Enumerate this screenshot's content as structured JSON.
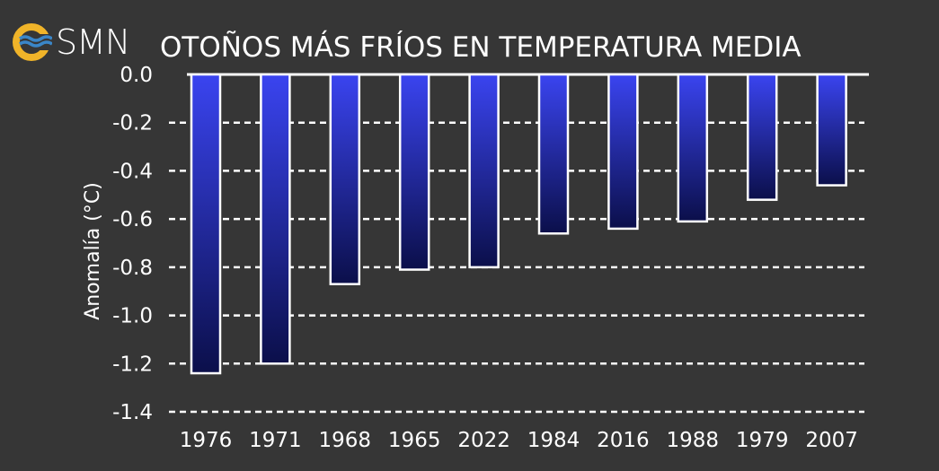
{
  "header": {
    "logo_text": "SMN",
    "logo_icon": "smn-wave-icon",
    "colors": {
      "logo_ring": "#f0b429",
      "logo_waves": "#3a86c8"
    }
  },
  "chart_data": {
    "type": "bar",
    "title": "OTOÑOS MÁS FRÍOS EN TEMPERATURA MEDIA",
    "xlabel": "",
    "ylabel": "Anomalía (°C)",
    "categories": [
      "1976",
      "1971",
      "1968",
      "1965",
      "2022",
      "1984",
      "2016",
      "1988",
      "1979",
      "2007"
    ],
    "values": [
      -1.24,
      -1.2,
      -0.87,
      -0.81,
      -0.8,
      -0.66,
      -0.64,
      -0.61,
      -0.52,
      -0.46
    ],
    "ylim": [
      -1.4,
      0.0
    ],
    "yticks": [
      "0.0",
      "-0.2",
      "-0.4",
      "-0.6",
      "-0.8",
      "-1.0",
      "-1.2",
      "-1.4"
    ],
    "grid": "horizontal dashed",
    "colors": {
      "background": "#363636",
      "bar_top": "#3a44f0",
      "bar_bottom": "#0b0f4a",
      "bar_outline": "#ffffff"
    }
  }
}
